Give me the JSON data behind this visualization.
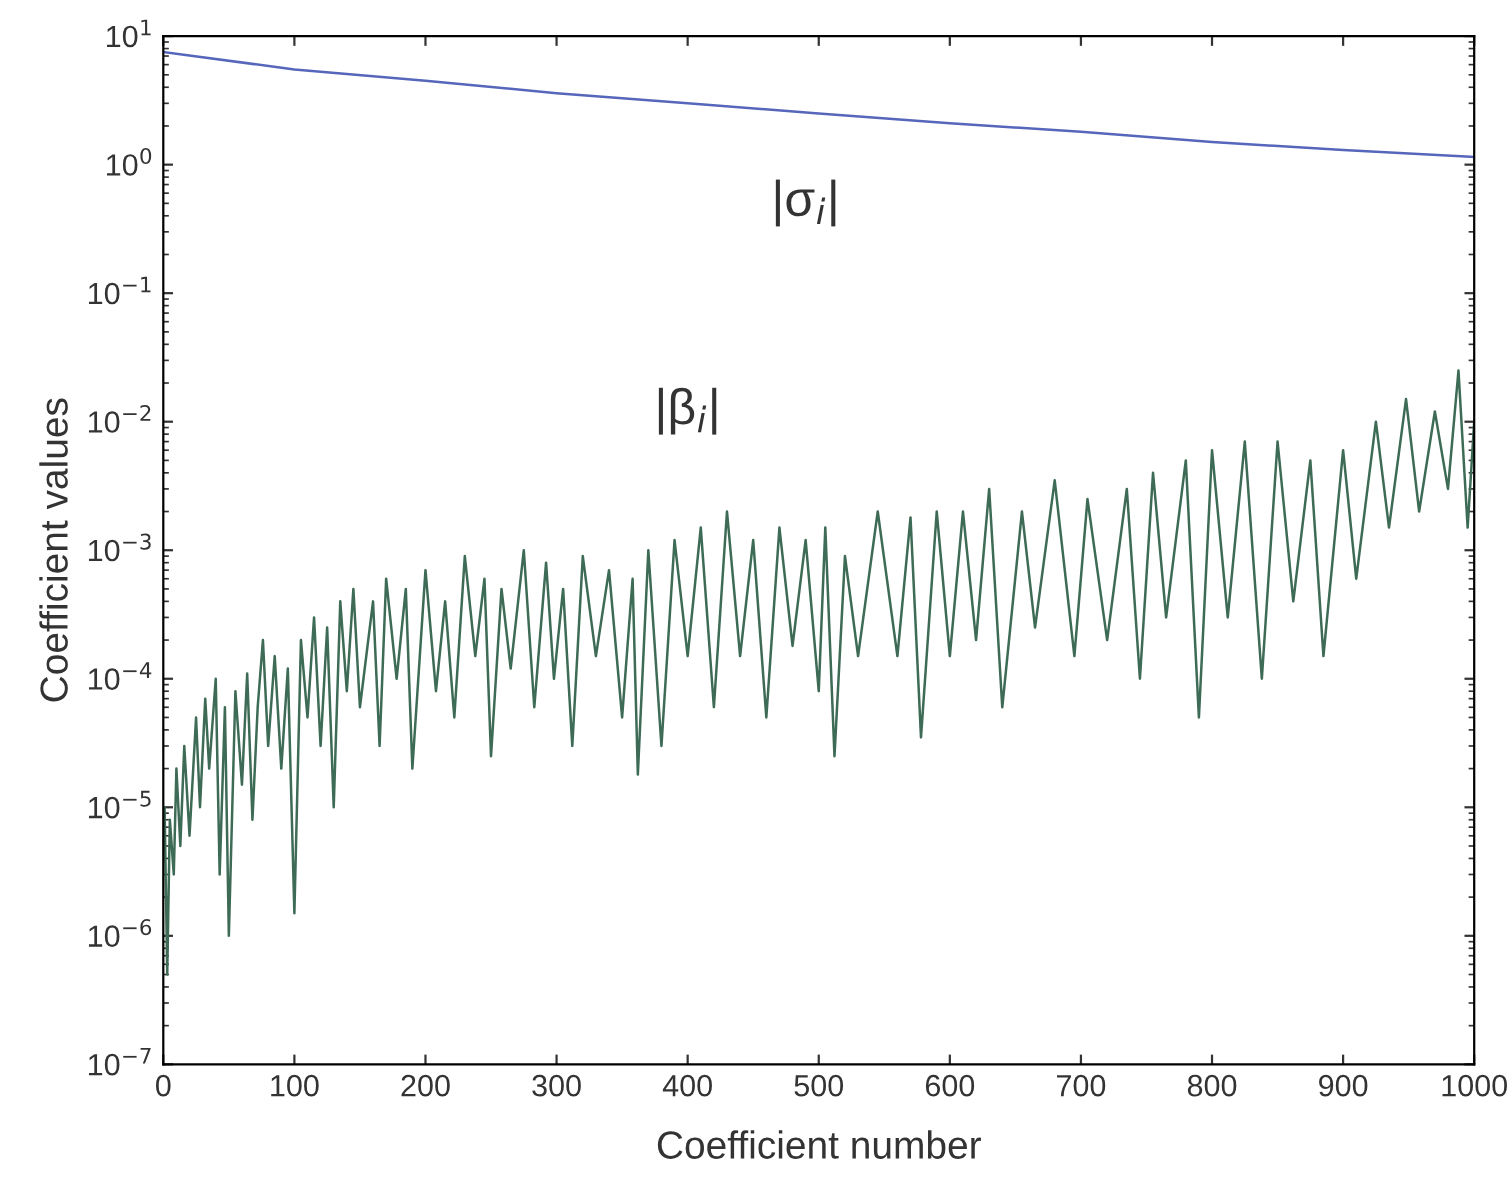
{
  "chart_data": {
    "type": "line",
    "xlabel": "Coefficient number",
    "ylabel": "Coefficient values",
    "log": "y",
    "grid": false,
    "xlim": [
      0,
      1000
    ],
    "xticks": [
      0,
      100,
      200,
      300,
      400,
      500,
      600,
      700,
      800,
      900,
      1000
    ],
    "ylim": [
      1e-07,
      10
    ],
    "yticks": [
      {
        "value": 1e-07,
        "label": "10$^{−7}$"
      },
      {
        "value": 1e-06,
        "label": "10$^{−6}$"
      },
      {
        "value": 1e-05,
        "label": "10$^{−5}$"
      },
      {
        "value": 0.0001,
        "label": "10$^{−4}$"
      },
      {
        "value": 0.001,
        "label": "10$^{−3}$"
      },
      {
        "value": 0.01,
        "label": "10$^{−2}$"
      },
      {
        "value": 0.1,
        "label": "10$^{−1}$"
      },
      {
        "value": 1,
        "label": "10$^{0}$"
      },
      {
        "value": 10,
        "label": "10$^{1}$"
      }
    ],
    "series": [
      {
        "name": "|σ$_{i}$|",
        "color": "#5566bb",
        "x": [
          1,
          100,
          200,
          300,
          400,
          500,
          600,
          700,
          800,
          900,
          1000
        ],
        "values": [
          7.5,
          5.5,
          4.5,
          3.6,
          3.0,
          2.5,
          2.1,
          1.8,
          1.5,
          1.3,
          1.15
        ]
      },
      {
        "name": "|β$_{i}$|",
        "color": "#3d6b55",
        "x": [
          1,
          3,
          5,
          8,
          10,
          13,
          16,
          20,
          25,
          28,
          32,
          35,
          40,
          43,
          47,
          50,
          55,
          60,
          64,
          68,
          72,
          76,
          80,
          85,
          90,
          95,
          100,
          105,
          110,
          115,
          120,
          125,
          130,
          135,
          140,
          145,
          150,
          160,
          165,
          170,
          178,
          185,
          190,
          200,
          208,
          215,
          222,
          230,
          238,
          245,
          250,
          258,
          265,
          275,
          283,
          292,
          298,
          305,
          312,
          320,
          330,
          340,
          350,
          358,
          362,
          370,
          380,
          390,
          400,
          410,
          420,
          430,
          440,
          450,
          460,
          470,
          480,
          490,
          500,
          505,
          512,
          520,
          530,
          545,
          560,
          570,
          578,
          590,
          600,
          610,
          620,
          630,
          640,
          655,
          665,
          680,
          695,
          705,
          720,
          735,
          745,
          755,
          765,
          780,
          790,
          800,
          812,
          825,
          838,
          850,
          862,
          875,
          885,
          900,
          910,
          925,
          935,
          948,
          958,
          970,
          980,
          988,
          995,
          1000
        ],
        "values": [
          1e-05,
          5e-07,
          8e-06,
          3e-06,
          2e-05,
          5e-06,
          3e-05,
          6e-06,
          5e-05,
          1e-05,
          7e-05,
          2e-05,
          0.0001,
          3e-06,
          6e-05,
          1e-06,
          8e-05,
          1.5e-05,
          0.00011,
          8e-06,
          6e-05,
          0.0002,
          3e-05,
          0.00015,
          2e-05,
          0.00012,
          1.5e-06,
          0.0002,
          5e-05,
          0.0003,
          3e-05,
          0.00025,
          1e-05,
          0.0004,
          8e-05,
          0.0005,
          6e-05,
          0.0004,
          3e-05,
          0.0006,
          0.0001,
          0.0005,
          2e-05,
          0.0007,
          8e-05,
          0.0004,
          5e-05,
          0.0009,
          0.00015,
          0.0006,
          2.5e-05,
          0.0005,
          0.00012,
          0.001,
          6e-05,
          0.0008,
          0.0001,
          0.0005,
          3e-05,
          0.0009,
          0.00015,
          0.0007,
          5e-05,
          0.0006,
          1.8e-05,
          0.001,
          3e-05,
          0.0012,
          0.00015,
          0.0015,
          6e-05,
          0.002,
          0.00015,
          0.0012,
          5e-05,
          0.0015,
          0.00018,
          0.0012,
          8e-05,
          0.0015,
          2.5e-05,
          0.0009,
          0.00015,
          0.002,
          0.00015,
          0.0018,
          3.5e-05,
          0.002,
          0.00015,
          0.002,
          0.0002,
          0.003,
          6e-05,
          0.002,
          0.00025,
          0.0035,
          0.00015,
          0.0025,
          0.0002,
          0.003,
          0.0001,
          0.004,
          0.0003,
          0.005,
          5e-05,
          0.006,
          0.0003,
          0.007,
          0.0001,
          0.007,
          0.0004,
          0.005,
          0.00015,
          0.006,
          0.0006,
          0.01,
          0.0015,
          0.015,
          0.002,
          0.012,
          0.003,
          0.025,
          0.0015,
          0.01
        ]
      }
    ]
  }
}
